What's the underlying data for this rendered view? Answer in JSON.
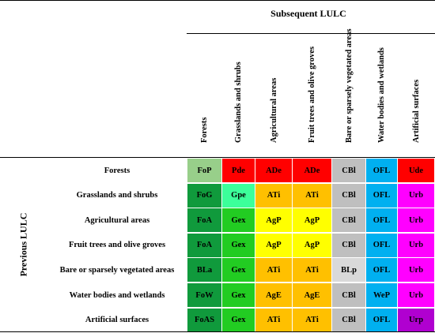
{
  "table": {
    "subsequent_label": "Subsequent LULC",
    "previous_label": "Previous LULC",
    "columns": [
      "Forests",
      "Grasslands and shrubs",
      "Agricultural areas",
      "Fruit trees and olive groves",
      "Bare or sparsely vegetated areas",
      "Water bodies and wetlands",
      "Artificial surfaces"
    ],
    "rows": [
      {
        "label": "Forests",
        "cells": [
          {
            "code": "FoP",
            "color": "#98cf8a"
          },
          {
            "code": "Pde",
            "color": "#ff0000"
          },
          {
            "code": "ADe",
            "color": "#ff0000"
          },
          {
            "code": "ADe",
            "color": "#ff0000"
          },
          {
            "code": "CBl",
            "color": "#bfbfbf"
          },
          {
            "code": "OFL",
            "color": "#00b0f0"
          },
          {
            "code": "Ude",
            "color": "#ff0000"
          }
        ]
      },
      {
        "label": "Grasslands and shrubs",
        "cells": [
          {
            "code": "FoG",
            "color": "#109a3c"
          },
          {
            "code": "Gpe",
            "color": "#3cff9a"
          },
          {
            "code": "ATi",
            "color": "#ffc000"
          },
          {
            "code": "ATi",
            "color": "#ffc000"
          },
          {
            "code": "CBl",
            "color": "#bfbfbf"
          },
          {
            "code": "OFL",
            "color": "#00b0f0"
          },
          {
            "code": "Urb",
            "color": "#ff00ff"
          }
        ]
      },
      {
        "label": "Agricultural areas",
        "cells": [
          {
            "code": "FoA",
            "color": "#109a3c"
          },
          {
            "code": "Gex",
            "color": "#22cc22"
          },
          {
            "code": "AgP",
            "color": "#ffff00"
          },
          {
            "code": "AgP",
            "color": "#ffff00"
          },
          {
            "code": "CBl",
            "color": "#bfbfbf"
          },
          {
            "code": "OFL",
            "color": "#00b0f0"
          },
          {
            "code": "Urb",
            "color": "#ff00ff"
          }
        ]
      },
      {
        "label": "Fruit trees and olive groves",
        "cells": [
          {
            "code": "FoA",
            "color": "#109a3c"
          },
          {
            "code": "Gex",
            "color": "#22cc22"
          },
          {
            "code": "AgP",
            "color": "#ffff00"
          },
          {
            "code": "AgP",
            "color": "#ffff00"
          },
          {
            "code": "CBl",
            "color": "#bfbfbf"
          },
          {
            "code": "OFL",
            "color": "#00b0f0"
          },
          {
            "code": "Urb",
            "color": "#ff00ff"
          }
        ]
      },
      {
        "label": "Bare or sparsely vegetated areas",
        "cells": [
          {
            "code": "BLa",
            "color": "#109a3c"
          },
          {
            "code": "Gex",
            "color": "#22cc22"
          },
          {
            "code": "ATi",
            "color": "#ffc000"
          },
          {
            "code": "ATi",
            "color": "#ffc000"
          },
          {
            "code": "BLp",
            "color": "#d9d9d9"
          },
          {
            "code": "OFL",
            "color": "#00b0f0"
          },
          {
            "code": "Urb",
            "color": "#ff00ff"
          }
        ]
      },
      {
        "label": "Water bodies and wetlands",
        "cells": [
          {
            "code": "FoW",
            "color": "#109a3c"
          },
          {
            "code": "Gex",
            "color": "#22cc22"
          },
          {
            "code": "AgE",
            "color": "#ffc000"
          },
          {
            "code": "AgE",
            "color": "#ffc000"
          },
          {
            "code": "CBl",
            "color": "#bfbfbf"
          },
          {
            "code": "WeP",
            "color": "#00b0f0"
          },
          {
            "code": "Urb",
            "color": "#ff00ff"
          }
        ]
      },
      {
        "label": "Artificial surfaces",
        "cells": [
          {
            "code": "FoAS",
            "color": "#109a3c"
          },
          {
            "code": "Gex",
            "color": "#22cc22"
          },
          {
            "code": "ATi",
            "color": "#ffc000"
          },
          {
            "code": "ATi",
            "color": "#ffc000"
          },
          {
            "code": "CBl",
            "color": "#bfbfbf"
          },
          {
            "code": "OFL",
            "color": "#00b0f0"
          },
          {
            "code": "Urp",
            "color": "#b000d0"
          }
        ]
      }
    ]
  }
}
